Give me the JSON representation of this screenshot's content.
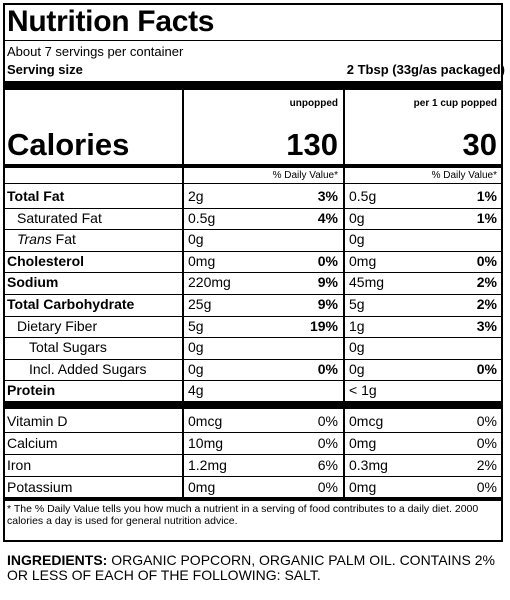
{
  "title": "Nutrition Facts",
  "servings": "About 7 servings per container",
  "serving_size_label": "Serving size",
  "serving_size_value": "2 Tbsp (33g/as packaged)",
  "columns": [
    "unpopped",
    "per 1 cup popped"
  ],
  "calories_label": "Calories",
  "calories": [
    "130",
    "30"
  ],
  "dv_header": "% Daily Value*",
  "nutrients": [
    {
      "label": "Total Fat",
      "amounts": [
        "2g",
        "0.5g"
      ],
      "dv": [
        "3%",
        "1%"
      ]
    },
    {
      "label": "Saturated Fat",
      "amounts": [
        "0.5g",
        "0g"
      ],
      "dv": [
        "4%",
        "1%"
      ]
    },
    {
      "label_italic": "Trans",
      "label_rest": " Fat",
      "amounts": [
        "0g",
        "0g"
      ],
      "dv": [
        "",
        ""
      ]
    },
    {
      "label": "Cholesterol",
      "amounts": [
        "0mg",
        "0mg"
      ],
      "dv": [
        "0%",
        "0%"
      ]
    },
    {
      "label": "Sodium",
      "amounts": [
        "220mg",
        "45mg"
      ],
      "dv": [
        "9%",
        "2%"
      ]
    },
    {
      "label": "Total Carbohydrate",
      "amounts": [
        "25g",
        "5g"
      ],
      "dv": [
        "9%",
        "2%"
      ]
    },
    {
      "label": "Dietary Fiber",
      "amounts": [
        "5g",
        "1g"
      ],
      "dv": [
        "19%",
        "3%"
      ]
    },
    {
      "label": "Total Sugars",
      "amounts": [
        "0g",
        "0g"
      ],
      "dv": [
        "",
        ""
      ]
    },
    {
      "label": "Incl. Added Sugars",
      "amounts": [
        "0g",
        "0g"
      ],
      "dv": [
        "0%",
        "0%"
      ]
    },
    {
      "label": "Protein",
      "amounts": [
        "4g",
        "< 1g"
      ],
      "dv": [
        "",
        ""
      ]
    }
  ],
  "vitamins": [
    {
      "label": "Vitamin D",
      "amounts": [
        "0mcg",
        "0mcg"
      ],
      "dv": [
        "0%",
        "0%"
      ]
    },
    {
      "label": "Calcium",
      "amounts": [
        "10mg",
        "0mg"
      ],
      "dv": [
        "0%",
        "0%"
      ]
    },
    {
      "label": "Iron",
      "amounts": [
        "1.2mg",
        "0.3mg"
      ],
      "dv": [
        "6%",
        "2%"
      ]
    },
    {
      "label": "Potassium",
      "amounts": [
        "0mg",
        "0mg"
      ],
      "dv": [
        "0%",
        "0%"
      ]
    }
  ],
  "footnote": "* The % Daily Value tells you how much a nutrient in a serving of food contributes to a daily diet. 2000 calories a day is used for general nutrition advice.",
  "ingredients_title": "INGREDIENTS:",
  "ingredients_text": " ORGANIC POPCORN, ORGANIC PALM OIL. CONTAINS 2% OR LESS OF EACH OF THE FOLLOWING: SALT."
}
